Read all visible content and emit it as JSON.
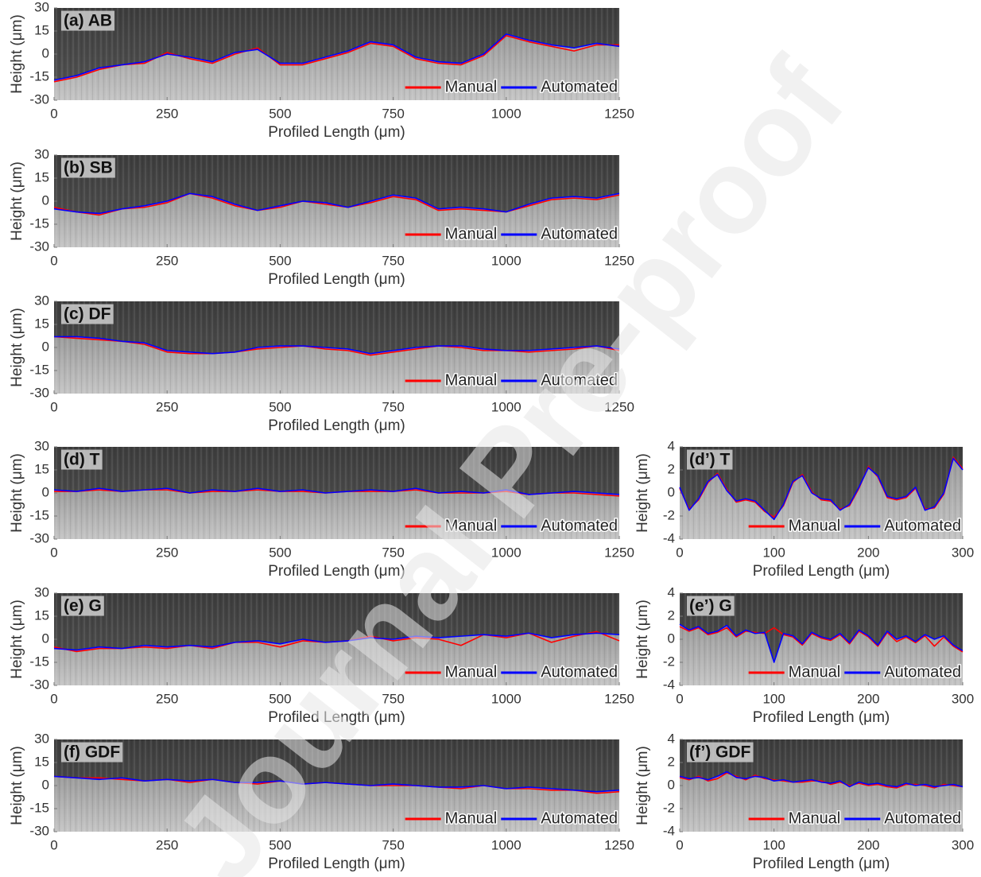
{
  "watermark": "Journal Pre-proof",
  "chart_data": [
    {
      "type": "line",
      "title": "(a) AB",
      "xlabel": "Profiled Length (μm)",
      "ylabel": "Height (μm)",
      "x": [
        0,
        50,
        100,
        150,
        200,
        250,
        300,
        350,
        400,
        450,
        500,
        550,
        600,
        650,
        700,
        750,
        800,
        850,
        900,
        950,
        1000,
        1050,
        1100,
        1150,
        1200,
        1250
      ],
      "series": [
        {
          "name": "Manual",
          "color": "#ff0000",
          "values": [
            -18,
            -15,
            -10,
            -7,
            -6,
            1,
            -3,
            -6,
            0,
            4,
            -7,
            -7,
            -3,
            1,
            7,
            5,
            -3,
            -6,
            -7,
            -1,
            12,
            8,
            5,
            2,
            6,
            6
          ]
        },
        {
          "name": "Automated",
          "color": "#0000ff",
          "values": [
            -17,
            -14,
            -9,
            -7,
            -5,
            0,
            -2,
            -5,
            1,
            3,
            -6,
            -6,
            -2,
            2,
            8,
            6,
            -2,
            -5,
            -6,
            0,
            13,
            9,
            6,
            4,
            7,
            5
          ]
        }
      ],
      "xlim": [
        0,
        1250
      ],
      "ylim": [
        -30,
        30
      ],
      "xticks": [
        0,
        250,
        500,
        750,
        1000,
        1250
      ],
      "yticks": [
        -30,
        -15,
        0,
        15,
        30
      ],
      "legend": "lower right"
    },
    {
      "type": "line",
      "title": "(b) SB",
      "xlabel": "Profiled Length (μm)",
      "ylabel": "Height (μm)",
      "x": [
        0,
        50,
        100,
        150,
        200,
        250,
        300,
        350,
        400,
        450,
        500,
        550,
        600,
        650,
        700,
        750,
        800,
        850,
        900,
        950,
        1000,
        1050,
        1100,
        1150,
        1200,
        1250
      ],
      "series": [
        {
          "name": "Manual",
          "color": "#ff0000",
          "values": [
            -4,
            -7,
            -9,
            -5,
            -4,
            -1,
            5,
            2,
            -3,
            -6,
            -4,
            0,
            -2,
            -4,
            -1,
            3,
            1,
            -6,
            -5,
            -6,
            -7,
            -3,
            1,
            2,
            1,
            4
          ]
        },
        {
          "name": "Automated",
          "color": "#0000ff",
          "values": [
            -5,
            -7,
            -8,
            -5,
            -3,
            0,
            5,
            3,
            -2,
            -6,
            -3,
            0,
            -1,
            -4,
            0,
            4,
            2,
            -5,
            -4,
            -5,
            -7,
            -2,
            2,
            3,
            2,
            5
          ]
        }
      ],
      "xlim": [
        0,
        1250
      ],
      "ylim": [
        -30,
        30
      ],
      "xticks": [
        0,
        250,
        500,
        750,
        1000,
        1250
      ],
      "yticks": [
        -30,
        -15,
        0,
        15,
        30
      ],
      "legend": "lower right"
    },
    {
      "type": "line",
      "title": "(c) DF",
      "xlabel": "Profiled Length (μm)",
      "ylabel": "Height (μm)",
      "x": [
        0,
        50,
        100,
        150,
        200,
        250,
        300,
        350,
        400,
        450,
        500,
        550,
        600,
        650,
        700,
        750,
        800,
        850,
        900,
        950,
        1000,
        1050,
        1100,
        1150,
        1200,
        1250
      ],
      "series": [
        {
          "name": "Manual",
          "color": "#ff0000",
          "values": [
            7,
            6,
            5,
            4,
            2,
            -3,
            -4,
            -4,
            -3,
            -1,
            0,
            1,
            -1,
            -2,
            -5,
            -3,
            -1,
            1,
            0,
            -2,
            -2,
            -3,
            -2,
            -1,
            1,
            -2
          ]
        },
        {
          "name": "Automated",
          "color": "#0000ff",
          "values": [
            7,
            7,
            6,
            4,
            3,
            -2,
            -3,
            -4,
            -3,
            0,
            1,
            1,
            0,
            -1,
            -4,
            -2,
            0,
            1,
            1,
            -1,
            -2,
            -2,
            -1,
            0,
            1,
            -1
          ]
        }
      ],
      "xlim": [
        0,
        1250
      ],
      "ylim": [
        -30,
        30
      ],
      "xticks": [
        0,
        250,
        500,
        750,
        1000,
        1250
      ],
      "yticks": [
        -30,
        -15,
        0,
        15,
        30
      ],
      "legend": "lower right"
    },
    {
      "type": "line",
      "title": "(d) T",
      "xlabel": "Profiled Length (μm)",
      "ylabel": "Height (μm)",
      "x": [
        0,
        50,
        100,
        150,
        200,
        250,
        300,
        350,
        400,
        450,
        500,
        550,
        600,
        650,
        700,
        750,
        800,
        850,
        900,
        950,
        1000,
        1050,
        1100,
        1150,
        1200,
        1250
      ],
      "series": [
        {
          "name": "Manual",
          "color": "#ff0000",
          "values": [
            1,
            1,
            2,
            1,
            2,
            2,
            0,
            1,
            1,
            2,
            1,
            1,
            0,
            1,
            1,
            1,
            2,
            0,
            0,
            0,
            1,
            -1,
            0,
            0,
            -1,
            -2
          ]
        },
        {
          "name": "Automated",
          "color": "#0000ff",
          "values": [
            2,
            1,
            3,
            1,
            2,
            3,
            0,
            2,
            1,
            3,
            1,
            2,
            0,
            1,
            2,
            1,
            3,
            0,
            1,
            0,
            2,
            -1,
            0,
            1,
            0,
            -1
          ]
        }
      ],
      "xlim": [
        0,
        1250
      ],
      "ylim": [
        -30,
        30
      ],
      "xticks": [
        0,
        250,
        500,
        750,
        1000,
        1250
      ],
      "yticks": [
        -30,
        -15,
        0,
        15,
        30
      ],
      "legend": "lower right"
    },
    {
      "type": "line",
      "title": "(e) G",
      "xlabel": "Profiled Length (μm)",
      "ylabel": "Height (μm)",
      "x": [
        0,
        50,
        100,
        150,
        200,
        250,
        300,
        350,
        400,
        450,
        500,
        550,
        600,
        650,
        700,
        750,
        800,
        850,
        900,
        950,
        1000,
        1050,
        1100,
        1150,
        1200,
        1250
      ],
      "series": [
        {
          "name": "Manual",
          "color": "#ff0000",
          "values": [
            -5,
            -8,
            -6,
            -6,
            -5,
            -6,
            -4,
            -6,
            -2,
            -2,
            -5,
            -1,
            -2,
            -1,
            2,
            -1,
            1,
            0,
            -4,
            3,
            1,
            4,
            -2,
            2,
            5,
            -1
          ]
        },
        {
          "name": "Automated",
          "color": "#0000ff",
          "values": [
            -6,
            -7,
            -5,
            -6,
            -4,
            -5,
            -4,
            -5,
            -2,
            -1,
            -3,
            0,
            -2,
            -1,
            1,
            0,
            2,
            1,
            2,
            3,
            2,
            4,
            1,
            3,
            4,
            3
          ]
        }
      ],
      "xlim": [
        0,
        1250
      ],
      "ylim": [
        -30,
        30
      ],
      "xticks": [
        0,
        250,
        500,
        750,
        1000,
        1250
      ],
      "yticks": [
        -30,
        -15,
        0,
        15,
        30
      ],
      "legend": "lower right"
    },
    {
      "type": "line",
      "title": "(f) GDF",
      "xlabel": "Profiled Length (μm)",
      "ylabel": "Height (μm)",
      "x": [
        0,
        50,
        100,
        150,
        200,
        250,
        300,
        350,
        400,
        450,
        500,
        550,
        600,
        650,
        700,
        750,
        800,
        850,
        900,
        950,
        1000,
        1050,
        1100,
        1150,
        1200,
        1250
      ],
      "series": [
        {
          "name": "Manual",
          "color": "#ff0000",
          "values": [
            6,
            5,
            5,
            4,
            3,
            4,
            2,
            4,
            2,
            1,
            3,
            1,
            2,
            1,
            0,
            0,
            0,
            -1,
            -2,
            0,
            -2,
            -2,
            -3,
            -3,
            -5,
            -4
          ]
        },
        {
          "name": "Automated",
          "color": "#0000ff",
          "values": [
            6,
            5,
            4,
            5,
            3,
            4,
            3,
            4,
            2,
            2,
            3,
            1,
            2,
            1,
            0,
            1,
            0,
            -1,
            -1,
            0,
            -2,
            -1,
            -2,
            -3,
            -4,
            -3
          ]
        }
      ],
      "xlim": [
        0,
        1250
      ],
      "ylim": [
        -30,
        30
      ],
      "xticks": [
        0,
        250,
        500,
        750,
        1000,
        1250
      ],
      "yticks": [
        -30,
        -15,
        0,
        15,
        30
      ],
      "legend": "lower right"
    },
    {
      "type": "line",
      "title": "(d’) T",
      "xlabel": "Profiled Length (μm)",
      "ylabel": "Height (μm)",
      "x": [
        0,
        10,
        20,
        30,
        40,
        50,
        60,
        70,
        80,
        90,
        100,
        110,
        120,
        130,
        140,
        150,
        160,
        170,
        180,
        190,
        200,
        210,
        220,
        230,
        240,
        250,
        260,
        270,
        280,
        290,
        300
      ],
      "series": [
        {
          "name": "Manual",
          "color": "#ff0000",
          "values": [
            0.4,
            -1.4,
            -0.6,
            0.9,
            1.7,
            0.3,
            -0.8,
            -0.6,
            -0.8,
            -1.6,
            -2.1,
            -1.1,
            0.9,
            1.6,
            0.1,
            -0.6,
            -0.7,
            -1.4,
            -1.1,
            0.4,
            2.3,
            1.4,
            -0.4,
            -0.6,
            -0.4,
            0.4,
            -1.4,
            -1.3,
            -0.1,
            3.1,
            2.1
          ]
        },
        {
          "name": "Automated",
          "color": "#0000ff",
          "values": [
            0.5,
            -1.5,
            -0.5,
            1.0,
            1.6,
            0.2,
            -0.7,
            -0.5,
            -0.7,
            -1.5,
            -2.3,
            -1.0,
            1.0,
            1.5,
            0,
            -0.5,
            -0.6,
            -1.5,
            -1.0,
            0.5,
            2.2,
            1.5,
            -0.3,
            -0.5,
            -0.3,
            0.5,
            -1.5,
            -1.2,
            0,
            3.0,
            2.0
          ]
        }
      ],
      "xlim": [
        0,
        300
      ],
      "ylim": [
        -4,
        4
      ],
      "xticks": [
        0,
        100,
        200,
        300
      ],
      "yticks": [
        -4,
        -2,
        0,
        2,
        4
      ],
      "legend": "lower right"
    },
    {
      "type": "line",
      "title": "(e’) G",
      "xlabel": "Profiled Length (μm)",
      "ylabel": "Height (μm)",
      "x": [
        0,
        10,
        20,
        30,
        40,
        50,
        60,
        70,
        80,
        90,
        100,
        110,
        120,
        130,
        140,
        150,
        160,
        170,
        180,
        190,
        200,
        210,
        220,
        230,
        240,
        250,
        260,
        270,
        280,
        290,
        300
      ],
      "series": [
        {
          "name": "Manual",
          "color": "#ff0000",
          "values": [
            1.1,
            0.7,
            1.0,
            0.4,
            0.6,
            1.0,
            0.2,
            0.7,
            0.6,
            0.5,
            1.0,
            0.4,
            0.2,
            -0.5,
            0.5,
            0.1,
            -0.1,
            0.4,
            -0.4,
            0.7,
            0.2,
            -0.6,
            0.6,
            -0.2,
            0.2,
            -0.3,
            0.3,
            -0.6,
            0.2,
            -0.6,
            -1.1
          ]
        },
        {
          "name": "Automated",
          "color": "#0000ff",
          "values": [
            1.3,
            0.8,
            1.1,
            0.5,
            0.7,
            1.2,
            0.3,
            0.8,
            0.5,
            0.6,
            -2.0,
            0.5,
            0.3,
            -0.4,
            0.6,
            0.2,
            0,
            0.5,
            -0.3,
            0.8,
            0.3,
            -0.5,
            0.7,
            0,
            0.3,
            -0.2,
            0.4,
            0,
            0.3,
            -0.5,
            -1.0
          ]
        }
      ],
      "xlim": [
        0,
        300
      ],
      "ylim": [
        -4,
        4
      ],
      "xticks": [
        0,
        100,
        200,
        300
      ],
      "yticks": [
        -4,
        -2,
        0,
        2,
        4
      ],
      "legend": "lower right"
    },
    {
      "type": "line",
      "title": "(f’) GDF",
      "xlabel": "Profiled Length (μm)",
      "ylabel": "Height (μm)",
      "x": [
        0,
        10,
        20,
        30,
        40,
        50,
        60,
        70,
        80,
        90,
        100,
        110,
        120,
        130,
        140,
        150,
        160,
        170,
        180,
        190,
        200,
        210,
        220,
        230,
        240,
        250,
        260,
        270,
        280,
        290,
        300
      ],
      "series": [
        {
          "name": "Manual",
          "color": "#ff0000",
          "values": [
            0.7,
            0.5,
            0.8,
            0.4,
            0.6,
            1.1,
            0.8,
            0.5,
            0.9,
            0.6,
            0.5,
            0.4,
            0.3,
            0.3,
            0.4,
            0.4,
            0.1,
            0.3,
            0,
            0.2,
            0,
            0.1,
            -0.1,
            -0.2,
            0.1,
            0.1,
            0,
            -0.2,
            0.1,
            0,
            -0.1
          ]
        },
        {
          "name": "Automated",
          "color": "#0000ff",
          "values": [
            0.8,
            0.6,
            0.7,
            0.5,
            0.8,
            1.2,
            0.7,
            0.6,
            0.8,
            0.7,
            0.4,
            0.5,
            0.3,
            0.4,
            0.5,
            0.3,
            0.2,
            0.4,
            -0.1,
            0.3,
            0.1,
            0.2,
            0,
            -0.1,
            0.2,
            0,
            0.1,
            -0.1,
            0,
            0.1,
            -0.1
          ]
        }
      ],
      "xlim": [
        0,
        300
      ],
      "ylim": [
        -4,
        4
      ],
      "xticks": [
        0,
        100,
        200,
        300
      ],
      "yticks": [
        -4,
        -2,
        0,
        2,
        4
      ],
      "legend": "lower right"
    }
  ]
}
